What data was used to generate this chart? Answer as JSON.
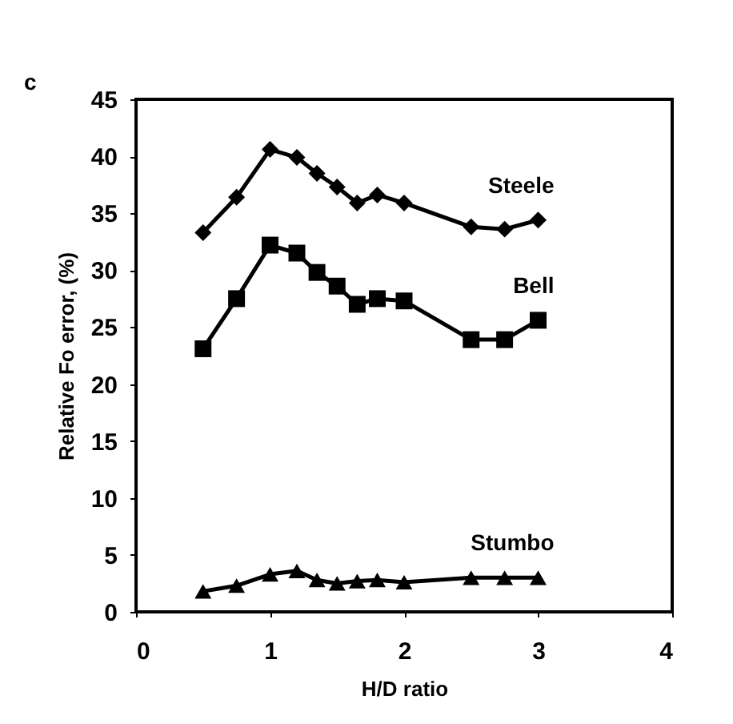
{
  "chart_data": {
    "type": "line",
    "xlabel": "H/D ratio",
    "ylabel": "Relative Fo error, (%)",
    "annotations": [
      "c"
    ],
    "x": [
      0.5,
      0.75,
      1,
      1.2,
      1.35,
      1.5,
      1.65,
      1.8,
      2,
      2.5,
      2.75,
      3
    ],
    "series": [
      {
        "name": "Steele",
        "color": "#000000",
        "marker": "diamond",
        "values": [
          33.3,
          36.4,
          40.6,
          39.9,
          38.5,
          37.3,
          35.9,
          36.6,
          35.9,
          33.8,
          33.6,
          34.4
        ]
      },
      {
        "name": "Bell",
        "color": "#000000",
        "marker": "square",
        "values": [
          23.1,
          27.5,
          32.2,
          31.5,
          29.8,
          28.6,
          27.0,
          27.5,
          27.3,
          23.9,
          23.9,
          25.6
        ]
      },
      {
        "name": "Stumbo",
        "color": "#000000",
        "marker": "triangle",
        "values": [
          1.8,
          2.3,
          3.3,
          3.6,
          2.8,
          2.5,
          2.7,
          2.8,
          2.6,
          3.0,
          3.0,
          3.0
        ]
      }
    ],
    "xlim": [
      0,
      4
    ],
    "xticks": [
      0,
      1,
      2,
      3,
      4
    ],
    "ylim": [
      0,
      45
    ],
    "yticks": [
      0,
      5,
      10,
      15,
      20,
      25,
      30,
      35,
      40,
      45
    ],
    "grid": false,
    "legend": false,
    "line_style": "solid"
  }
}
